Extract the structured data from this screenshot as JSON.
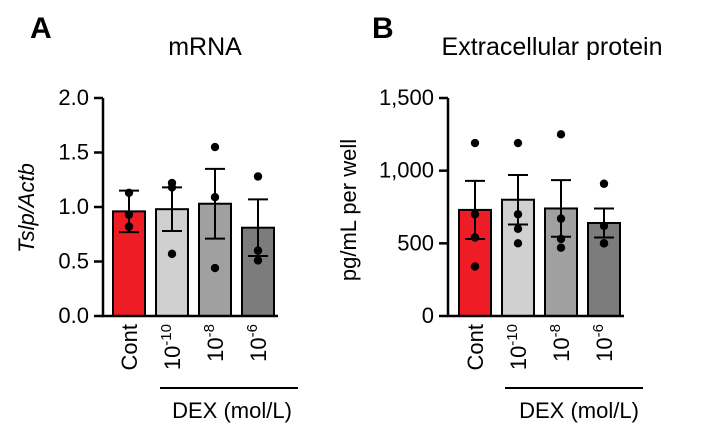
{
  "chart_data": [
    {
      "type": "bar",
      "panel": "A",
      "title": "mRNA",
      "ylabel": "Tslp/Actb",
      "ylim": [
        0,
        2.0
      ],
      "yticks": [
        "0.0",
        "0.5",
        "1.0",
        "1.5",
        "2.0"
      ],
      "group_label": "DEX (mol/L)",
      "categories": [
        {
          "base": "Cont",
          "exp": ""
        },
        {
          "base": "10",
          "exp": "-10"
        },
        {
          "base": "10",
          "exp": "-8"
        },
        {
          "base": "10",
          "exp": "-6"
        }
      ],
      "colors": [
        "#ee1c24",
        "#d0d0d0",
        "#a0a0a0",
        "#7c7c7c"
      ],
      "values": [
        0.96,
        0.98,
        1.03,
        0.81
      ],
      "error": [
        0.19,
        0.2,
        0.32,
        0.26
      ],
      "points": [
        [
          0.82,
          1.13,
          0.93
        ],
        [
          1.22,
          1.18,
          0.57
        ],
        [
          1.55,
          1.09,
          0.44
        ],
        [
          1.28,
          0.6,
          0.51
        ]
      ]
    },
    {
      "type": "bar",
      "panel": "B",
      "title": "Extracellular protein",
      "ylabel": "pg/mL per well",
      "ylim": [
        0,
        1500
      ],
      "yticks": [
        "0",
        "500",
        "1,000",
        "1,500"
      ],
      "group_label": "DEX (mol/L)",
      "categories": [
        {
          "base": "Cont",
          "exp": ""
        },
        {
          "base": "10",
          "exp": "-10"
        },
        {
          "base": "10",
          "exp": "-8"
        },
        {
          "base": "10",
          "exp": "-6"
        }
      ],
      "colors": [
        "#ee1c24",
        "#d0d0d0",
        "#a0a0a0",
        "#7c7c7c"
      ],
      "values": [
        730,
        800,
        740,
        640
      ],
      "error": [
        200,
        170,
        195,
        100
      ],
      "points": [
        [
          1190,
          700,
          540,
          340
        ],
        [
          1190,
          700,
          600,
          500
        ],
        [
          1250,
          670,
          530,
          470
        ],
        [
          910,
          620,
          500,
          500
        ]
      ]
    }
  ]
}
